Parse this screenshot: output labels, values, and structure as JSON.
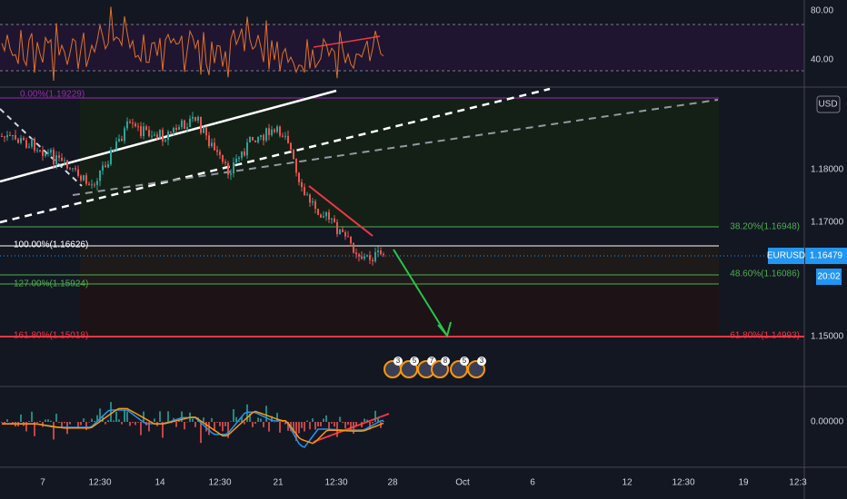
{
  "rsi_axis": [
    "80.00",
    "40.00"
  ],
  "price_axis": [
    "1.18000",
    "1.17000",
    "1.15000"
  ],
  "macd_axis": [
    "0.00000"
  ],
  "currency": "USD",
  "symbol_tag": {
    "symbol": "EURUSD",
    "price": "1.16479",
    "countdown": "20:02"
  },
  "fib_levels": {
    "top": "0.00%(1.19229)",
    "a": "38.20%(1.16948)",
    "base": "100.00%(1.16626)",
    "b": "48.60%(1.16086)",
    "c": "127.00%(1.15924)",
    "d": "161.80%(1.15018)",
    "e": "61.80%(1.14993)"
  },
  "time_axis": [
    "7",
    "12:30",
    "14",
    "12:30",
    "21",
    "12:30",
    "28",
    "Oct",
    "6",
    "12",
    "12:30",
    "19",
    "12:3"
  ],
  "event_badges": [
    "3",
    "5",
    "7",
    "8",
    "5",
    "3"
  ]
}
